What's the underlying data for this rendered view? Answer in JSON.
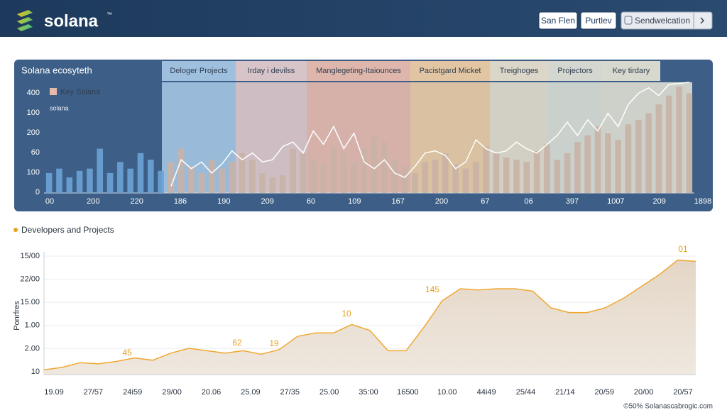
{
  "header": {
    "brand": "solana",
    "trademark": "™",
    "buttons": [
      "San Flen",
      "Purtlev",
      "Sendwelcation"
    ]
  },
  "chart_data": [
    {
      "type": "bar",
      "title": "Solana ecosyteth",
      "legend": [
        "Key Solana",
        "solana"
      ],
      "bands": [
        {
          "label": "Deloger Projects",
          "color": "#a9cbe8"
        },
        {
          "label": "Irday i devilss",
          "color": "#e8cfcf"
        },
        {
          "label": "Manglegeting-Itaiounces",
          "color": "#f0c0b0"
        },
        {
          "label": "Pacistgard Micket",
          "color": "#f4d2a6"
        },
        {
          "label": "Treighoges",
          "color": "#ece3cf"
        },
        {
          "label": "Projectors",
          "color": "#e3e4d8"
        },
        {
          "label": "Key tirdary",
          "color": "#e8e5d6"
        }
      ],
      "y_axis_labels": [
        "400",
        "100",
        "200",
        "60",
        "100",
        "0"
      ],
      "x_axis_labels": [
        "00",
        "200",
        "220",
        "186",
        "190",
        "209",
        "60",
        "109",
        "167",
        "200",
        "67",
        "06",
        "397",
        "1007",
        "209",
        "1898"
      ],
      "ylim": [
        0,
        100
      ],
      "values": [
        18,
        22,
        14,
        20,
        22,
        40,
        18,
        28,
        22,
        36,
        30,
        20,
        28,
        40,
        24,
        18,
        30,
        22,
        28,
        36,
        30,
        18,
        14,
        16,
        40,
        36,
        30,
        26,
        42,
        36,
        28,
        40,
        52,
        46,
        30,
        24,
        18,
        28,
        30,
        36,
        26,
        22,
        28,
        42,
        36,
        32,
        30,
        28,
        38,
        44,
        30,
        36,
        46,
        52,
        60,
        54,
        48,
        62,
        66,
        72,
        80,
        88,
        96,
        90
      ],
      "line": [
        null,
        null,
        null,
        null,
        null,
        null,
        null,
        null,
        null,
        null,
        null,
        null,
        6,
        30,
        22,
        28,
        18,
        26,
        38,
        30,
        36,
        28,
        30,
        42,
        46,
        36,
        56,
        44,
        60,
        40,
        54,
        28,
        22,
        30,
        18,
        14,
        24,
        36,
        38,
        34,
        22,
        28,
        48,
        40,
        36,
        38,
        46,
        40,
        36,
        44,
        52,
        64,
        52,
        66,
        56,
        72,
        60,
        80,
        90,
        95,
        88,
        98,
        99,
        100
      ]
    },
    {
      "type": "area",
      "title": "Developers and Projects",
      "y_label": "Ponrfres",
      "y_axis_labels": [
        "15/00",
        "22/00",
        "15.00",
        "1.00",
        "2.00",
        "10"
      ],
      "x_axis_labels": [
        "19.09",
        "27/57",
        "24i59",
        "29/00",
        "20.06",
        "25.09",
        "27/35",
        "25.00",
        "35:00",
        "16500",
        "10.00",
        "44i49",
        "25/44",
        "21/14",
        "20/59",
        "20/00",
        "20/57"
      ],
      "annotations": [
        "45",
        "62",
        "19",
        "10",
        "145",
        "01"
      ],
      "color": "#e8ddd0",
      "ylim": [
        0,
        100
      ],
      "values": [
        4,
        6,
        10,
        9,
        11,
        14,
        12,
        18,
        22,
        20,
        18,
        20,
        17,
        21,
        32,
        35,
        35,
        42,
        37,
        20,
        20,
        40,
        62,
        72,
        71,
        72,
        72,
        70,
        56,
        52,
        52,
        56,
        64,
        74,
        84,
        96,
        95
      ]
    }
  ],
  "footer": "©50% Solanascabrogic.com"
}
